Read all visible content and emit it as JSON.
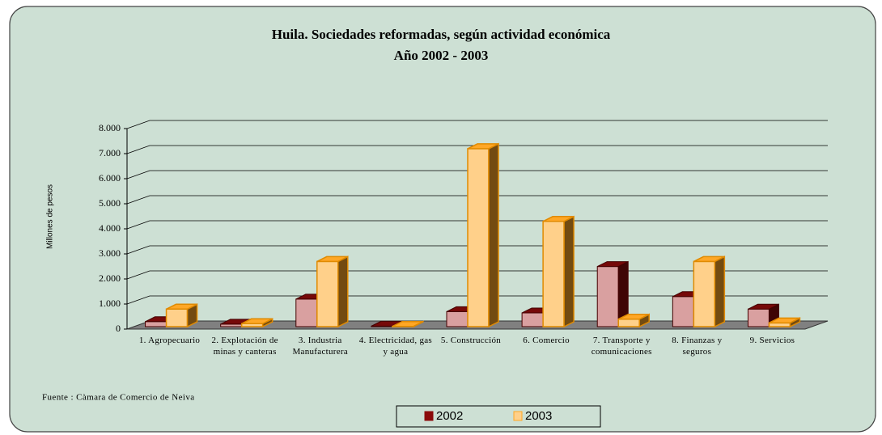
{
  "chart_data": {
    "type": "bar3d",
    "title": "Huila. Sociedades reformadas, según actividad económica",
    "subtitle": "Año 2002 - 2003",
    "y_label": "Millones de pesos",
    "source": "Fuente : Càmara de Comercio de Neiva",
    "categories": [
      "1. Agropecuario",
      "2. Explotación de minas y canteras",
      "3. Industria Manufacturera",
      "4. Electricidad, gas y agua",
      "5. Construcción",
      "6. Comercio",
      "7. Transporte y comunicaciones",
      "8. Finanzas y seguros",
      "9. Servicios"
    ],
    "series": [
      {
        "name": "2002",
        "color": "#8b0a0a",
        "values": [
          200,
          100,
          1100,
          20,
          600,
          550,
          2400,
          1200,
          700
        ]
      },
      {
        "name": "2003",
        "color": "#ffa726",
        "values": [
          700,
          120,
          2600,
          10,
          7100,
          4200,
          300,
          2600,
          150
        ]
      }
    ],
    "ylim": [
      0,
      8000
    ],
    "yticks": [
      0,
      {
        "value": 1000,
        "label": "1.000"
      },
      {
        "value": 2000,
        "label": "2.000"
      },
      {
        "value": 3000,
        "label": "3.000"
      },
      {
        "value": 4000,
        "label": "4.000"
      },
      {
        "value": 5000,
        "label": "5.000"
      },
      {
        "value": 6000,
        "label": "6.000"
      },
      {
        "value": 7000,
        "label": "7.000"
      },
      {
        "value": 8000,
        "label": "8.000"
      }
    ],
    "grid": true
  }
}
